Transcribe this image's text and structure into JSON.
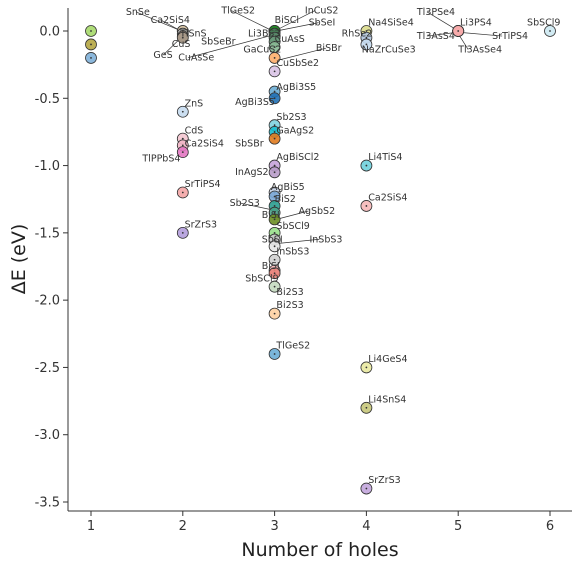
{
  "chart_data": {
    "type": "scatter",
    "title": "",
    "xlabel": "Number of holes",
    "ylabel": "ΔE (eV)",
    "xlim": [
      0.75,
      6.25
    ],
    "ylim": [
      -3.55,
      0.17
    ],
    "x_ticks": [
      1,
      2,
      3,
      4,
      5,
      6
    ],
    "x_tick_labels": [
      "1",
      "2",
      "3",
      "4",
      "5",
      "6"
    ],
    "y_ticks": [
      0.0,
      -0.5,
      -1.0,
      -1.5,
      -2.0,
      -2.5,
      -3.0,
      -3.5
    ],
    "y_tick_labels": [
      "0.0",
      "-0.5",
      "-1.0",
      "-1.5",
      "-2.0",
      "-2.5",
      "-3.0",
      "-3.5"
    ],
    "grid": false,
    "legend": "none",
    "points": [
      {
        "x": 1,
        "y": 0.0,
        "color": "#a6d96a"
      },
      {
        "x": 1,
        "y": -0.1,
        "color": "#b5a642"
      },
      {
        "x": 1,
        "y": -0.2,
        "color": "#7fb0d8"
      },
      {
        "x": 2,
        "y": 0.0,
        "label": "SnSe",
        "color": "#c9b08a"
      },
      {
        "x": 2,
        "y": 0.0,
        "label": "Ca2SiS4",
        "color": "#d8c7a8"
      },
      {
        "x": 2,
        "y": -0.02,
        "label": "TlSnS",
        "color": "#bcbcbc"
      },
      {
        "x": 2,
        "y": -0.04,
        "label": "CuS",
        "color": "#9c8a7a"
      },
      {
        "x": 2,
        "y": -0.05,
        "label": "GeS",
        "color": "#a89a8a"
      },
      {
        "x": 2,
        "y": -0.6,
        "label": "ZnS",
        "color": "#c6dbef"
      },
      {
        "x": 2,
        "y": -0.8,
        "label": "CdS",
        "color": "#f4c6d0"
      },
      {
        "x": 2,
        "y": -0.85,
        "label": "Ca2SiS4",
        "color": "#f2b6c6"
      },
      {
        "x": 2,
        "y": -0.9,
        "label": "TlPPbS4",
        "color": "#e377c2"
      },
      {
        "x": 2,
        "y": -1.2,
        "label": "SrTiPS4",
        "color": "#f4a6a6"
      },
      {
        "x": 2,
        "y": -1.5,
        "label": "SrZrS3",
        "color": "#b39ddb"
      },
      {
        "x": 3,
        "y": 0.0,
        "label": "TlGeS2",
        "color": "#2ca02c"
      },
      {
        "x": 3,
        "y": 0.0,
        "label": "BiSCl",
        "color": "#1f7a3a"
      },
      {
        "x": 3,
        "y": 0.0,
        "label": "InCuS2",
        "color": "#3b9b5b"
      },
      {
        "x": 3,
        "y": 0.0,
        "label": "SbSeI",
        "color": "#2e8b57"
      },
      {
        "x": 3,
        "y": 0.0,
        "label": "Li3BS3",
        "color": "#228b22"
      },
      {
        "x": 3,
        "y": -0.02,
        "label": "SbSeBr",
        "color": "#4a7a5a"
      },
      {
        "x": 3,
        "y": -0.05,
        "label": "CuAsS",
        "color": "#5a8a6a"
      },
      {
        "x": 3,
        "y": -0.08,
        "label": "CuAsSe",
        "color": "#6a9a7a"
      },
      {
        "x": 3,
        "y": -0.12,
        "label": "GaCuS2",
        "color": "#88b894"
      },
      {
        "x": 3,
        "y": -0.2,
        "label": "BiSBr",
        "color": "#fdae6b"
      },
      {
        "x": 3,
        "y": -0.3,
        "label": "CuSbSe2",
        "color": "#d9c3e6"
      },
      {
        "x": 3,
        "y": -0.45,
        "label": "AgBi3S5",
        "color": "#6baed6"
      },
      {
        "x": 3,
        "y": -0.5,
        "label": "AgBi3S5",
        "color": "#2171b5"
      },
      {
        "x": 3,
        "y": -0.7,
        "label": "Sb2S3",
        "color": "#7fd3e0"
      },
      {
        "x": 3,
        "y": -0.75,
        "label": "GaAgS2",
        "color": "#17becf"
      },
      {
        "x": 3,
        "y": -0.8,
        "label": "SbSBr",
        "color": "#e07b1f"
      },
      {
        "x": 3,
        "y": -1.0,
        "label": "AgBiSCl2",
        "color": "#c5a3d9"
      },
      {
        "x": 3,
        "y": -1.05,
        "label": "InAgS2",
        "color": "#b89cc9"
      },
      {
        "x": 3,
        "y": -1.2,
        "label": "AgBiS5",
        "color": "#c7d3e8"
      },
      {
        "x": 3,
        "y": -1.23,
        "label": "BiS2",
        "color": "#7ba7d6"
      },
      {
        "x": 3,
        "y": -1.3,
        "label": "Sb2S3",
        "color": "#2a9d8f"
      },
      {
        "x": 3,
        "y": -1.35,
        "label": "AgSbS2",
        "color": "#4aa38a"
      },
      {
        "x": 3,
        "y": -1.4,
        "label": "BiSI",
        "color": "#6b8e23"
      },
      {
        "x": 3,
        "y": -1.5,
        "label": "SbSCl9",
        "color": "#98df8a"
      },
      {
        "x": 3,
        "y": -1.55,
        "label": "InSbS3",
        "color": "#c8c8c8"
      },
      {
        "x": 3,
        "y": -1.6,
        "label": "SbSI",
        "color": "#e5e5e5"
      },
      {
        "x": 3,
        "y": -1.7,
        "label": "InSbS3",
        "color": "#d0d0d0"
      },
      {
        "x": 3,
        "y": -1.78,
        "label": "BiSI",
        "color": "#f7b6b6"
      },
      {
        "x": 3,
        "y": -1.8,
        "label": "SbSCl9",
        "color": "#e8837a"
      },
      {
        "x": 3,
        "y": -1.9,
        "label": "Bi2S3",
        "color": "#c5dcc0"
      },
      {
        "x": 3,
        "y": -2.1,
        "label": "Bi2S3",
        "color": "#fdd0a2"
      },
      {
        "x": 3,
        "y": -2.4,
        "label": "TlGeS2",
        "color": "#6baed6"
      },
      {
        "x": 4,
        "y": 0.0,
        "label": "Na4SiSe4",
        "color": "#dbdb8d"
      },
      {
        "x": 4,
        "y": -0.05,
        "label": "RhSe2",
        "color": "#b0c4de"
      },
      {
        "x": 4,
        "y": -0.1,
        "label": "NaZrCuSe3",
        "color": "#c6dbef"
      },
      {
        "x": 4,
        "y": -1.0,
        "label": "Li4TiS4",
        "color": "#6fd0dc"
      },
      {
        "x": 4,
        "y": -1.3,
        "label": "Ca2SiS4",
        "color": "#f6b8b8"
      },
      {
        "x": 4,
        "y": -2.5,
        "label": "Li4GeS4",
        "color": "#e8e8a0"
      },
      {
        "x": 4,
        "y": -2.8,
        "label": "Li4SnS4",
        "color": "#c7c77a"
      },
      {
        "x": 4,
        "y": -3.4,
        "label": "SrZrS3",
        "color": "#c2a5db"
      },
      {
        "x": 5,
        "y": 0.0,
        "label": "Tl3PSe4",
        "color": "#f28e8e"
      },
      {
        "x": 5,
        "y": 0.0,
        "label": "Li3PS4",
        "color": "#e75f5f"
      },
      {
        "x": 5,
        "y": 0.0,
        "label": "Tl3AsS4",
        "color": "#f4a09c"
      },
      {
        "x": 5,
        "y": 0.0,
        "label": "SrTiPS4",
        "color": "#ee7b7b"
      },
      {
        "x": 5,
        "y": 0.0,
        "label": "Tl3AsSe4",
        "color": "#f7b0b0"
      },
      {
        "x": 6,
        "y": 0.0,
        "label": "SbSCl9",
        "color": "#cde9f2"
      }
    ],
    "annotations": [
      {
        "text": "SnSe",
        "x": 1.38,
        "y": 0.12,
        "tx": 1.95,
        "ty": 0.01
      },
      {
        "text": "Ca2SiS4",
        "x": 1.65,
        "y": 0.06,
        "tx": 1.98,
        "ty": 0.0
      },
      {
        "text": "TlSnS",
        "x": 1.97,
        "y": -0.04
      },
      {
        "text": "CuS",
        "x": 1.88,
        "y": -0.12
      },
      {
        "text": "GeS",
        "x": 1.68,
        "y": -0.2,
        "tx": 1.98,
        "ty": -0.05
      },
      {
        "text": "TlGeS2",
        "x": 2.42,
        "y": 0.13,
        "tx": 2.98,
        "ty": 0.0
      },
      {
        "text": "BiSCl",
        "x": 3.0,
        "y": 0.06
      },
      {
        "text": "InCuS2",
        "x": 3.33,
        "y": 0.13,
        "tx": 3.0,
        "ty": 0.0
      },
      {
        "text": "SbSeI",
        "x": 3.37,
        "y": 0.04,
        "tx": 3.02,
        "ty": 0.0
      },
      {
        "text": "Li3BS3",
        "x": 2.71,
        "y": -0.04
      },
      {
        "text": "SbSeBr",
        "x": 2.2,
        "y": -0.1
      },
      {
        "text": "CuAsS",
        "x": 3.0,
        "y": -0.08
      },
      {
        "text": "CuAsSe",
        "x": 1.95,
        "y": -0.22,
        "tx": 2.98,
        "ty": -0.03
      },
      {
        "text": "GaCuS2",
        "x": 2.66,
        "y": -0.16
      },
      {
        "text": "BiSBr",
        "x": 3.45,
        "y": -0.15,
        "tx": 3.02,
        "ty": -0.22
      },
      {
        "text": "CuSbSe2",
        "x": 3.02,
        "y": -0.26
      },
      {
        "text": "AgBi3S5",
        "x": 3.02,
        "y": -0.44
      },
      {
        "text": "AgBi3S5",
        "x": 2.57,
        "y": -0.55
      },
      {
        "text": "Sb2S3",
        "x": 3.02,
        "y": -0.66
      },
      {
        "text": "GaAgS2",
        "x": 3.02,
        "y": -0.76
      },
      {
        "text": "SbSBr",
        "x": 2.57,
        "y": -0.86
      },
      {
        "text": "AgBiSCl2",
        "x": 3.02,
        "y": -0.96
      },
      {
        "text": "InAgS2",
        "x": 2.57,
        "y": -1.07
      },
      {
        "text": "AgBiS5",
        "x": 2.96,
        "y": -1.18
      },
      {
        "text": "BiS2",
        "x": 3.0,
        "y": -1.27
      },
      {
        "text": "Sb2S3",
        "x": 2.51,
        "y": -1.3,
        "tx": 2.98,
        "ty": -1.33
      },
      {
        "text": "AgSbS2",
        "x": 3.26,
        "y": -1.36,
        "tx": 3.02,
        "ty": -1.4
      },
      {
        "text": "BiSI",
        "x": 2.86,
        "y": -1.39
      },
      {
        "text": "SbSCl9",
        "x": 3.02,
        "y": -1.47
      },
      {
        "text": "InSbS3",
        "x": 3.38,
        "y": -1.57,
        "tx": 3.02,
        "ty": -1.58
      },
      {
        "text": "SbSI",
        "x": 2.86,
        "y": -1.57
      },
      {
        "text": "InSbS3",
        "x": 3.02,
        "y": -1.66
      },
      {
        "text": "BiSI",
        "x": 2.86,
        "y": -1.77
      },
      {
        "text": "SbSCl9",
        "x": 2.68,
        "y": -1.86
      },
      {
        "text": "Bi2S3",
        "x": 3.02,
        "y": -1.96
      },
      {
        "text": "Bi2S3",
        "x": 3.02,
        "y": -2.06
      },
      {
        "text": "TlGeS2",
        "x": 3.02,
        "y": -2.36
      },
      {
        "text": "ZnS",
        "x": 2.02,
        "y": -0.56
      },
      {
        "text": "CdS",
        "x": 2.02,
        "y": -0.76
      },
      {
        "text": "Ca2SiS4",
        "x": 2.02,
        "y": -0.86
      },
      {
        "text": "TlPPbS4",
        "x": 1.56,
        "y": -0.97
      },
      {
        "text": "SrTiPS4",
        "x": 2.02,
        "y": -1.16
      },
      {
        "text": "SrZrS3",
        "x": 2.02,
        "y": -1.46
      },
      {
        "text": "Na4SiSe4",
        "x": 4.02,
        "y": 0.04
      },
      {
        "text": "RhSe2",
        "x": 3.73,
        "y": -0.04
      },
      {
        "text": "NaZrCuSe3",
        "x": 3.95,
        "y": -0.16
      },
      {
        "text": "Li4TiS4",
        "x": 4.02,
        "y": -0.96
      },
      {
        "text": "Ca2SiS4",
        "x": 4.02,
        "y": -1.26
      },
      {
        "text": "Li4GeS4",
        "x": 4.02,
        "y": -2.46
      },
      {
        "text": "Li4SnS4",
        "x": 4.02,
        "y": -2.76
      },
      {
        "text": "SrZrS3",
        "x": 4.02,
        "y": -3.36
      },
      {
        "text": "Tl3PSe4",
        "x": 4.55,
        "y": 0.12,
        "tx": 4.98,
        "ty": 0.01
      },
      {
        "text": "Li3PS4",
        "x": 5.02,
        "y": 0.04
      },
      {
        "text": "Tl3AsS4",
        "x": 4.55,
        "y": -0.06,
        "tx": 4.98,
        "ty": -0.01
      },
      {
        "text": "SrTiPS4",
        "x": 5.37,
        "y": -0.06,
        "tx": 5.02,
        "ty": -0.01
      },
      {
        "text": "Tl3AsSe4",
        "x": 5.0,
        "y": -0.16,
        "tx": 5.0,
        "ty": -0.02
      },
      {
        "text": "SbSCl9",
        "x": 5.75,
        "y": 0.04
      }
    ]
  }
}
